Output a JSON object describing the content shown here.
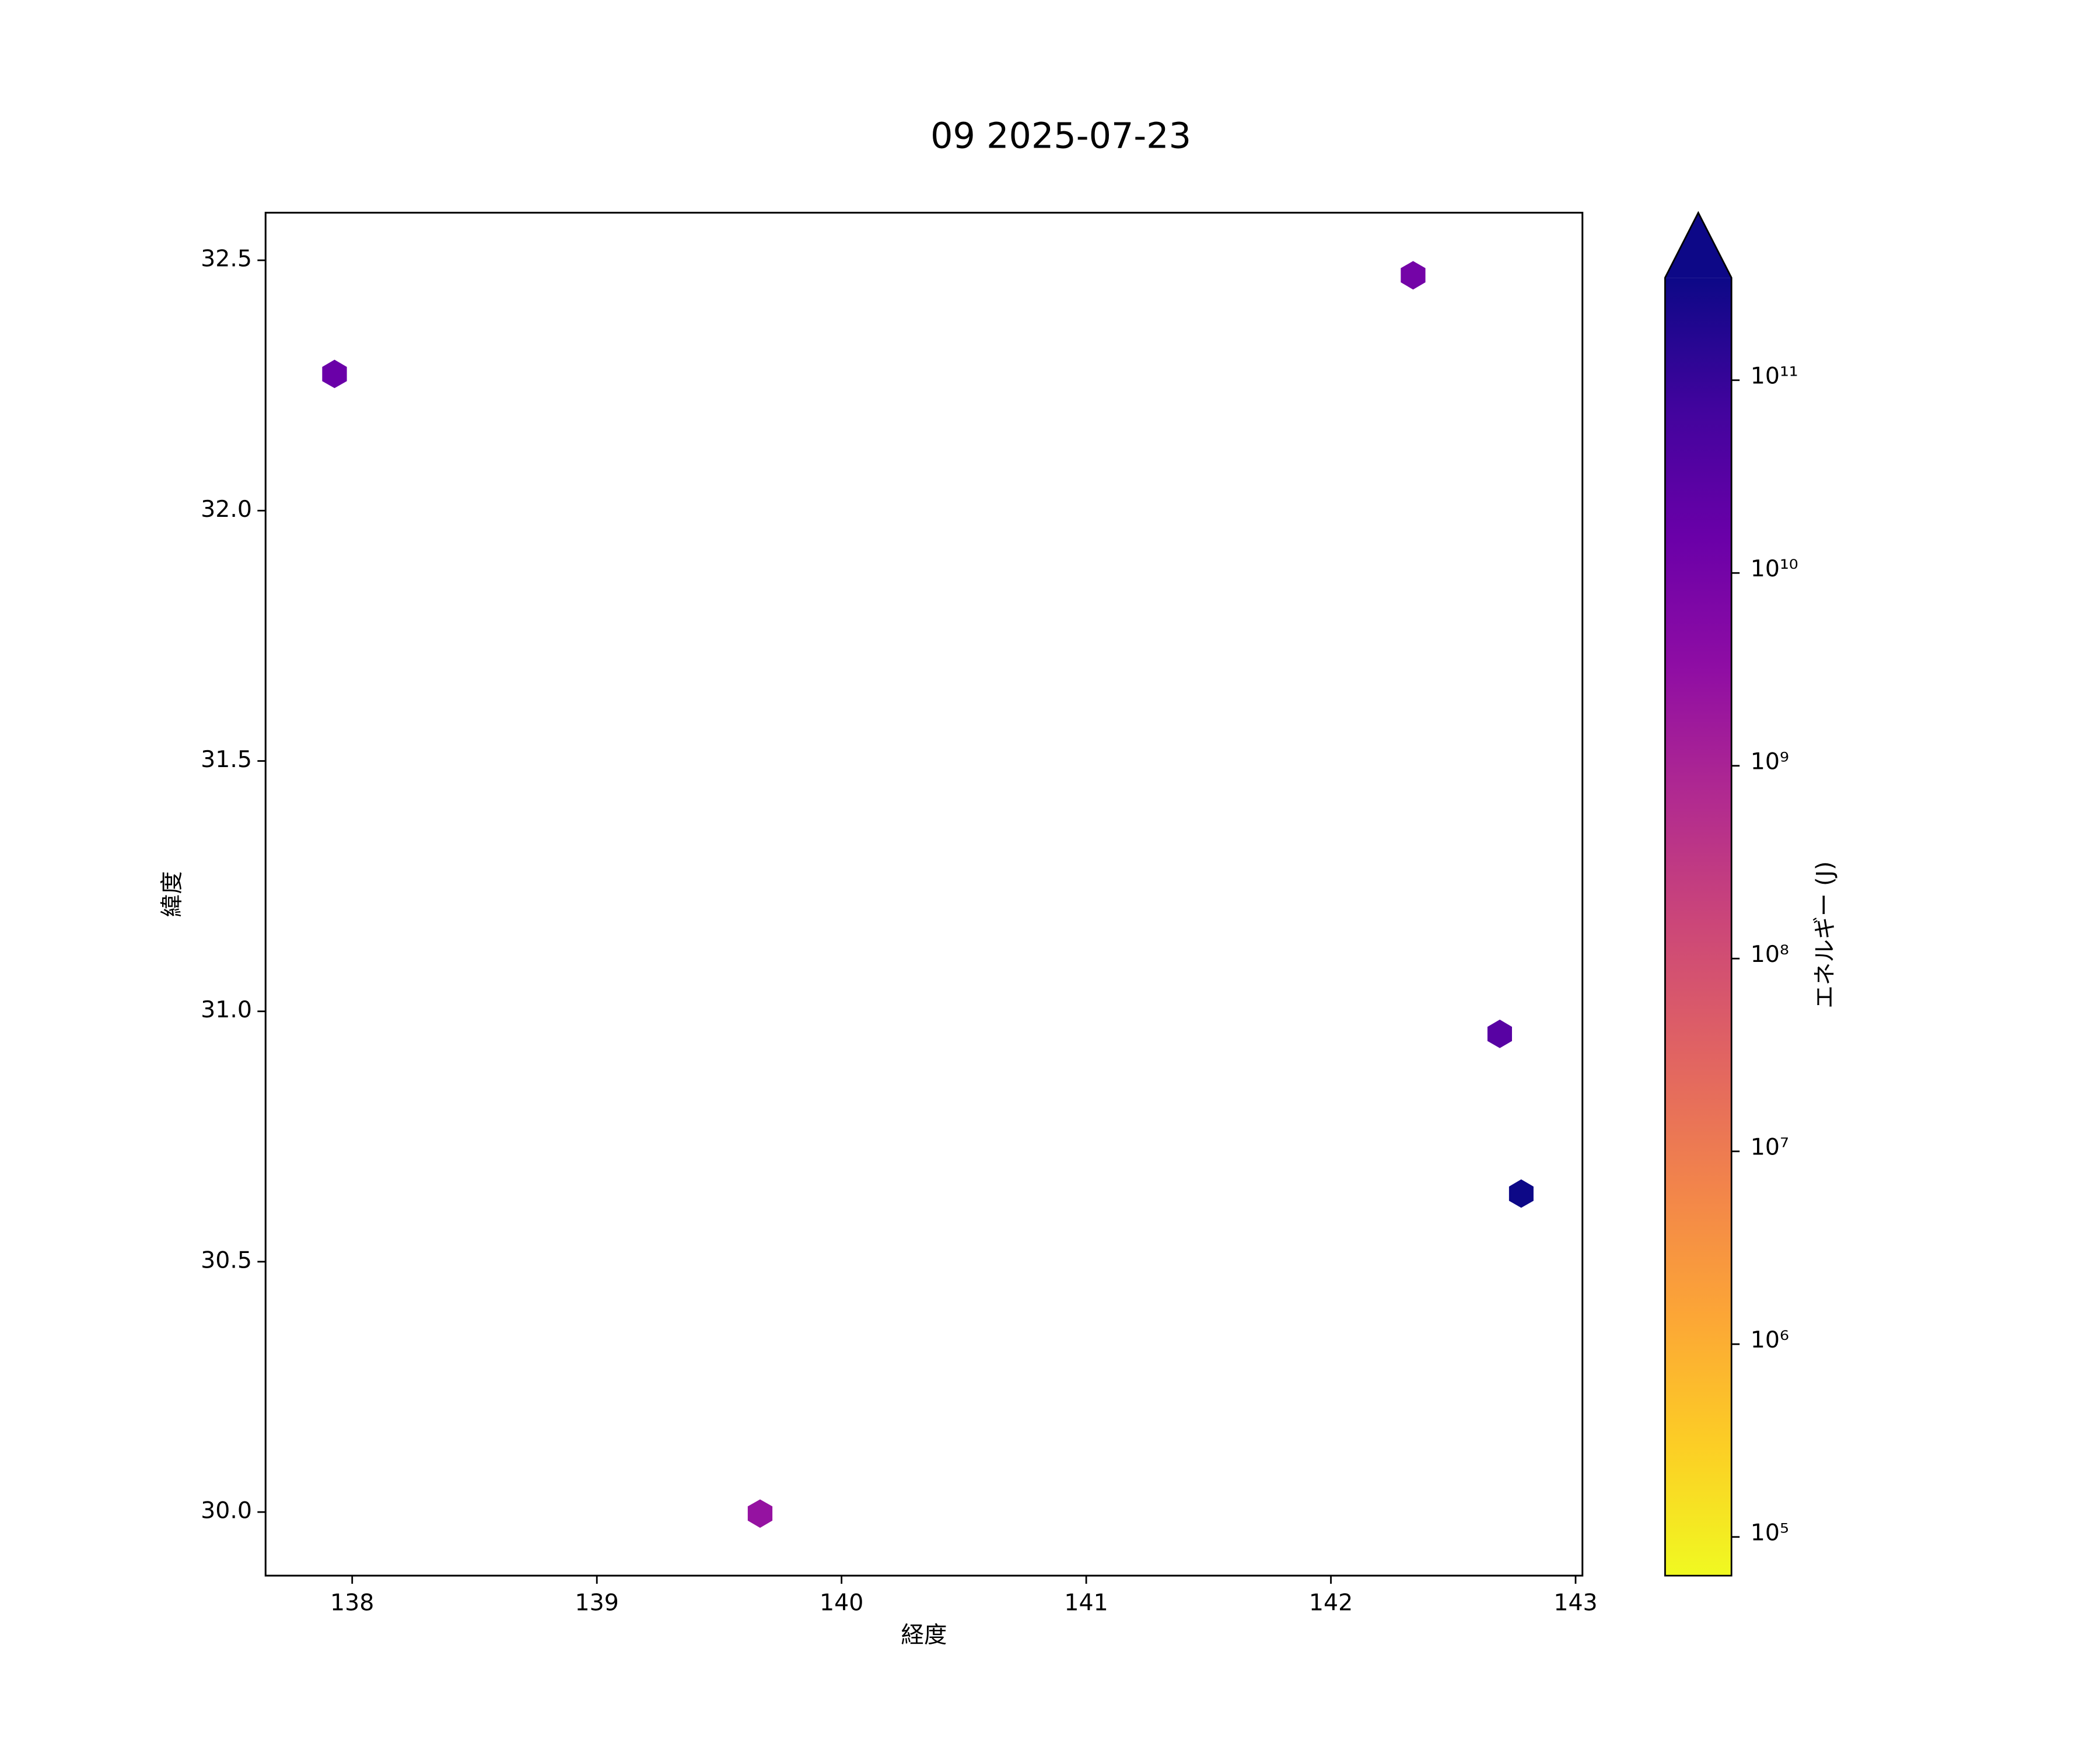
{
  "chart_data": {
    "type": "scatter",
    "title": "09 2025-07-23",
    "x_label": "経度",
    "y_label": "緯度",
    "x": [
      137.928,
      142.336,
      142.69,
      142.778,
      139.667
    ],
    "y": [
      32.273,
      32.47,
      30.955,
      30.636,
      29.997
    ],
    "energy": [
      15000000000,
      10000000000,
      30000000000,
      500000000000,
      2500000000
    ],
    "xlim": [
      137.646,
      143.028
    ],
    "xticks": [
      138,
      139,
      140,
      141,
      142,
      143
    ],
    "ylim": [
      29.873,
      32.595
    ],
    "yticks": [
      {
        "value": 30,
        "label": "30.0"
      },
      30.5,
      {
        "value": 31,
        "label": "31.0"
      },
      31.5,
      {
        "value": 32,
        "label": "32.0"
      },
      32.5
    ],
    "colorbar_label": "エネルギー (J)",
    "colormap": "plasma_r",
    "colorbar_log": true,
    "clim": [
      63000,
      340000000000
    ],
    "colorbar_ticks": [
      {
        "value": 100000,
        "label": "10⁵"
      },
      {
        "value": 1000000,
        "label": "10⁶"
      },
      {
        "value": 10000000,
        "label": "10⁷"
      },
      {
        "value": 100000000,
        "label": "10⁸"
      },
      {
        "value": 1000000000,
        "label": "10⁹"
      },
      {
        "value": 10000000000,
        "label": "10¹⁰"
      },
      {
        "value": 100000000000,
        "label": "10¹¹"
      }
    ]
  }
}
